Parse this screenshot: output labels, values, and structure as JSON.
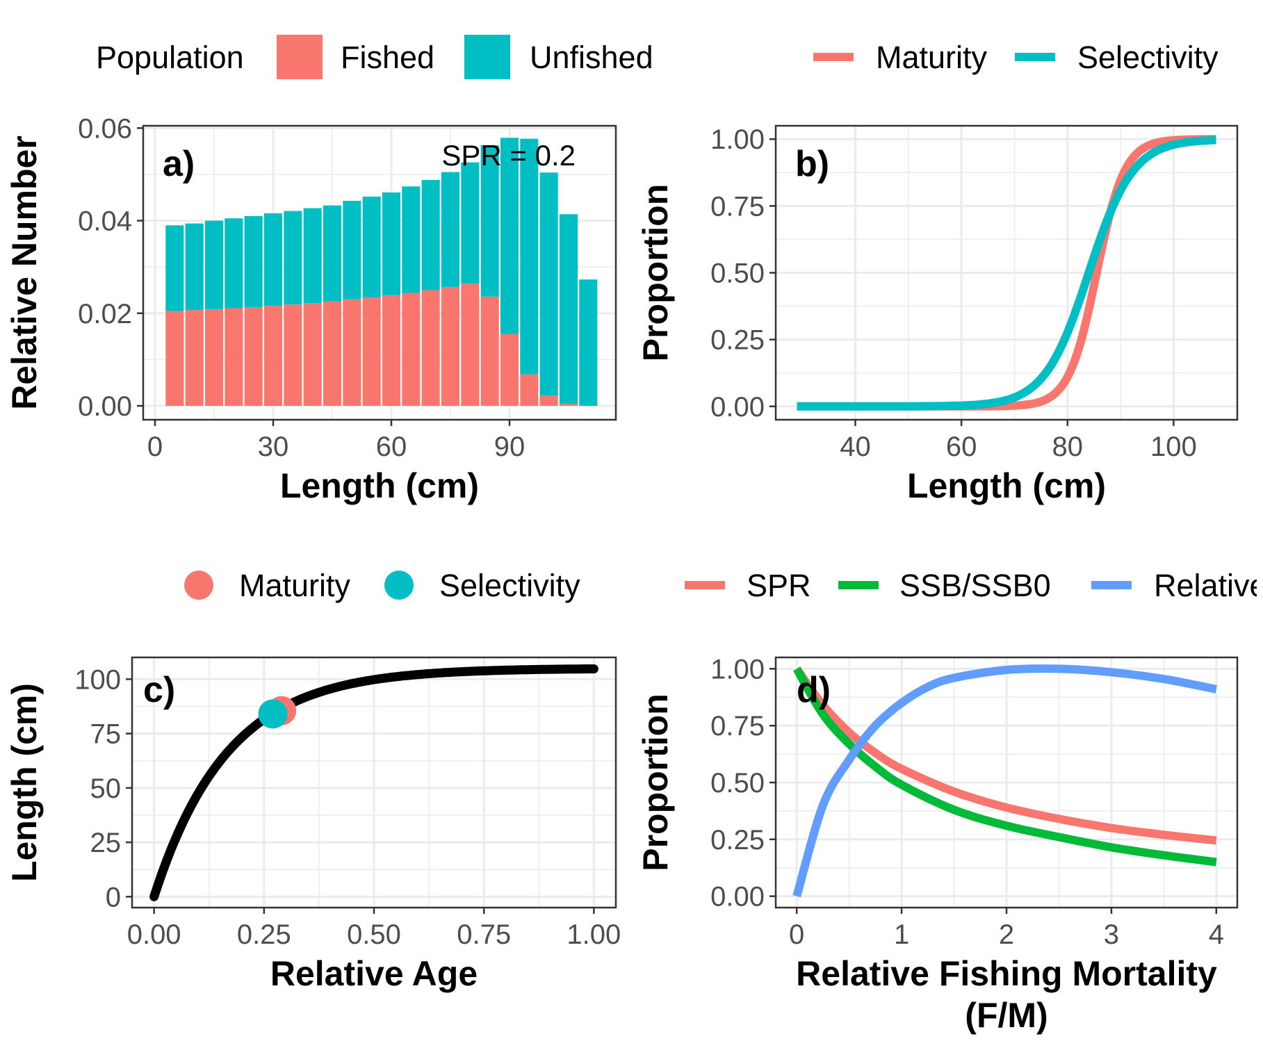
{
  "colors": {
    "red": "#F8766D",
    "teal": "#00BFC4",
    "green": "#00BA38",
    "blue": "#619CFF",
    "black": "#000000",
    "grid": "#ebebeb"
  },
  "chart_data": [
    {
      "panel": "a",
      "type": "bar",
      "stacked": true,
      "panel_label": "a)",
      "annotation": "SPR = 0.2",
      "xlabel": "Length (cm)",
      "ylabel": "Relative Number",
      "xlim": [
        -3,
        117
      ],
      "ylim": [
        -0.003,
        0.0605
      ],
      "xticks": [
        0,
        30,
        60,
        90
      ],
      "yticks": [
        0.0,
        0.02,
        0.04,
        0.06
      ],
      "xtick_labels": [
        "0",
        "30",
        "60",
        "90"
      ],
      "ytick_labels": [
        "0.00",
        "0.02",
        "0.04",
        "0.06"
      ],
      "legend": {
        "title": "Population",
        "entries": [
          "Fished",
          "Unfished"
        ],
        "placement": "top"
      },
      "x": [
        5,
        10,
        15,
        20,
        25,
        30,
        35,
        40,
        45,
        50,
        55,
        60,
        65,
        70,
        75,
        80,
        85,
        90,
        95,
        100,
        105,
        110
      ],
      "series": [
        {
          "name": "Fished",
          "values": [
            0.0205,
            0.0207,
            0.0209,
            0.0211,
            0.0213,
            0.0216,
            0.0219,
            0.0222,
            0.0226,
            0.023,
            0.0234,
            0.0239,
            0.0244,
            0.025,
            0.0257,
            0.0264,
            0.0236,
            0.0155,
            0.0068,
            0.0022,
            0.0004,
            0.0
          ]
        },
        {
          "name": "Unfished",
          "values": [
            0.0185,
            0.0187,
            0.0191,
            0.0194,
            0.0197,
            0.02,
            0.0202,
            0.0205,
            0.0207,
            0.0213,
            0.0218,
            0.0222,
            0.023,
            0.0238,
            0.0248,
            0.0262,
            0.0327,
            0.0424,
            0.0509,
            0.0482,
            0.041,
            0.0273
          ]
        }
      ]
    },
    {
      "panel": "b",
      "type": "line",
      "panel_label": "b)",
      "xlabel": "Length (cm)",
      "ylabel": "Proportion",
      "xlim": [
        25,
        112
      ],
      "ylim": [
        -0.05,
        1.05
      ],
      "xticks": [
        40,
        60,
        80,
        100
      ],
      "yticks": [
        0.0,
        0.25,
        0.5,
        0.75,
        1.0
      ],
      "xtick_labels": [
        "40",
        "60",
        "80",
        "100"
      ],
      "ytick_labels": [
        "0.00",
        "0.25",
        "0.50",
        "0.75",
        "1.00"
      ],
      "legend": {
        "entries": [
          "Maturity",
          "Selectivity"
        ],
        "placement": "top"
      },
      "series": [
        {
          "name": "Maturity",
          "curve": "logistic",
          "x_range": [
            29,
            108
          ],
          "l50": 85.5,
          "slope": 0.38
        },
        {
          "name": "Selectivity",
          "curve": "logistic",
          "x_range": [
            29,
            108
          ],
          "l50": 84,
          "slope": 0.24
        }
      ]
    },
    {
      "panel": "c",
      "type": "line",
      "panel_label": "c)",
      "xlabel": "Relative Age",
      "ylabel": "Length (cm)",
      "xlim": [
        -0.05,
        1.05
      ],
      "ylim": [
        -5,
        110
      ],
      "xticks": [
        0.0,
        0.25,
        0.5,
        0.75,
        1.0
      ],
      "yticks": [
        0,
        25,
        50,
        75,
        100
      ],
      "xtick_labels": [
        "0.00",
        "0.25",
        "0.50",
        "0.75",
        "1.00"
      ],
      "ytick_labels": [
        "0",
        "25",
        "50",
        "75",
        "100"
      ],
      "legend": {
        "entries": [
          "Maturity",
          "Selectivity"
        ],
        "placement": "top"
      },
      "growth_curve": {
        "curve": "von_bertalanffy",
        "linf": 105,
        "k": 6.0,
        "x_range": [
          0,
          1
        ]
      },
      "points": [
        {
          "name": "Maturity",
          "x": 0.29,
          "y": 85.5
        },
        {
          "name": "Selectivity",
          "x": 0.27,
          "y": 84
        }
      ]
    },
    {
      "panel": "d",
      "type": "line",
      "panel_label": "d)",
      "xlabel_line1": "Relative Fishing Mortality",
      "xlabel_line2": "(F/M)",
      "ylabel": "Proportion",
      "xlim": [
        -0.2,
        4.2
      ],
      "ylim": [
        -0.05,
        1.05
      ],
      "xticks": [
        0,
        1,
        2,
        3,
        4
      ],
      "yticks": [
        0.0,
        0.25,
        0.5,
        0.75,
        1.0
      ],
      "xtick_labels": [
        "0",
        "1",
        "2",
        "3",
        "4"
      ],
      "ytick_labels": [
        "0.00",
        "0.25",
        "0.50",
        "0.75",
        "1.00"
      ],
      "legend": {
        "entries": [
          "SPR",
          "SSB/SSB0",
          "Relative Yield"
        ],
        "placement": "top"
      },
      "series": [
        {
          "name": "SPR",
          "x": [
            0,
            0.25,
            0.5,
            0.75,
            1,
            1.5,
            2,
            2.5,
            3,
            3.5,
            4
          ],
          "values": [
            1.0,
            0.84,
            0.72,
            0.63,
            0.56,
            0.46,
            0.39,
            0.34,
            0.3,
            0.27,
            0.245
          ]
        },
        {
          "name": "SSB/SSB0",
          "x": [
            0,
            0.25,
            0.5,
            0.75,
            1,
            1.5,
            2,
            2.5,
            3,
            3.5,
            4
          ],
          "values": [
            1.0,
            0.8,
            0.67,
            0.57,
            0.49,
            0.38,
            0.31,
            0.26,
            0.215,
            0.18,
            0.15
          ]
        },
        {
          "name": "Relative Yield",
          "x": [
            0,
            0.25,
            0.5,
            0.75,
            1,
            1.25,
            1.5,
            2,
            2.5,
            3,
            3.5,
            4
          ],
          "values": [
            0.0,
            0.4,
            0.6,
            0.75,
            0.85,
            0.92,
            0.96,
            0.995,
            1.0,
            0.985,
            0.955,
            0.91
          ]
        }
      ]
    }
  ]
}
